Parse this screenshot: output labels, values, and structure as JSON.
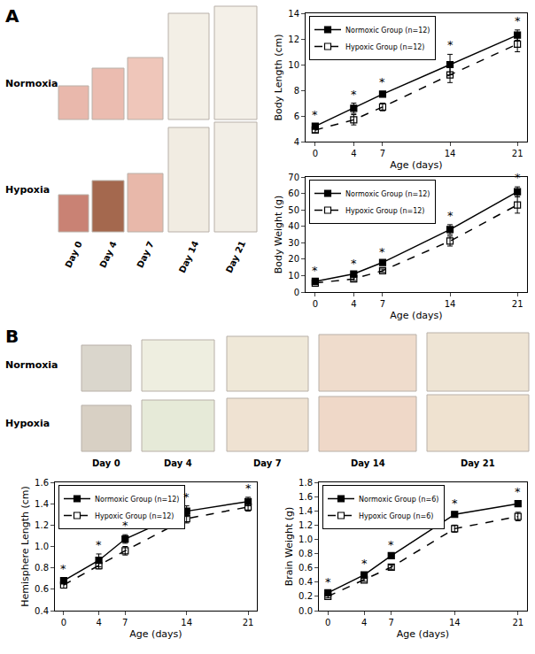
{
  "photo_panels": [
    {
      "label": "A",
      "rows": [
        "Normoxia",
        "Hypoxia"
      ],
      "columns": [
        "Day 0",
        "Day 4",
        "Day 7",
        "Day 14",
        "Day 21"
      ]
    },
    {
      "label": "B",
      "rows": [
        "Normoxia",
        "Hypoxia"
      ],
      "columns": [
        "Day 0",
        "Day 4",
        "Day 7",
        "Day 14",
        "Day 21"
      ]
    }
  ],
  "chart_data": [
    {
      "type": "line",
      "x_label": "Age (days)",
      "y_label": "Body Length (cm)",
      "x": [
        0,
        4,
        7,
        14,
        21
      ],
      "xlim": [
        -1,
        22
      ],
      "xticks": [
        0,
        4,
        7,
        14,
        21
      ],
      "ylim": [
        4,
        14
      ],
      "yticks": [
        4,
        6,
        8,
        10,
        12,
        14
      ],
      "grid": false,
      "legend": "upper left",
      "series": [
        {
          "name": "Normoxic Group (n=12)",
          "color": "#000000",
          "marker": "square",
          "line_style": "solid",
          "values": [
            5.2,
            6.6,
            7.7,
            10.0,
            12.3
          ],
          "error": [
            0.2,
            0.4,
            0.2,
            0.8,
            0.4
          ]
        },
        {
          "name": "Hypoxic Group (n=12)",
          "color": "#000000",
          "marker": "square-open",
          "line_style": "dash",
          "values": [
            4.9,
            5.7,
            6.7,
            9.2,
            11.6
          ],
          "error": [
            0.2,
            0.4,
            0.3,
            0.6,
            0.6
          ]
        }
      ],
      "annotations": [
        {
          "x": 0,
          "text": "*"
        },
        {
          "x": 4,
          "text": "*"
        },
        {
          "x": 7,
          "text": "*"
        },
        {
          "x": 14,
          "text": "*"
        },
        {
          "x": 21,
          "text": "*"
        }
      ]
    },
    {
      "type": "line",
      "x_label": "Age (days)",
      "y_label": "Body Weight (g)",
      "x": [
        0,
        4,
        7,
        14,
        21
      ],
      "xlim": [
        -1,
        22
      ],
      "xticks": [
        0,
        4,
        7,
        14,
        21
      ],
      "ylim": [
        0,
        70
      ],
      "yticks": [
        0,
        10,
        20,
        30,
        40,
        50,
        60,
        70
      ],
      "grid": false,
      "legend": "upper left",
      "series": [
        {
          "name": "Normoxic Group (n=12)",
          "color": "#000000",
          "marker": "square",
          "line_style": "solid",
          "values": [
            6.5,
            11,
            18,
            38,
            61
          ],
          "error": [
            1,
            1,
            1,
            3,
            3
          ]
        },
        {
          "name": "Hypoxic Group (n=12)",
          "color": "#000000",
          "marker": "square-open",
          "line_style": "dash",
          "values": [
            5.5,
            8,
            13,
            31,
            53
          ],
          "error": [
            1,
            1,
            1,
            3,
            5
          ]
        }
      ],
      "annotations": [
        {
          "x": 0,
          "text": "*"
        },
        {
          "x": 4,
          "text": "*"
        },
        {
          "x": 7,
          "text": "*"
        },
        {
          "x": 14,
          "text": "*"
        },
        {
          "x": 21,
          "text": "*"
        }
      ]
    },
    {
      "type": "line",
      "x_label": "Age (days)",
      "y_label": "Hemisphere Length (cm)",
      "x": [
        0,
        4,
        7,
        14,
        21
      ],
      "xlim": [
        -1,
        22
      ],
      "xticks": [
        0,
        4,
        7,
        14,
        21
      ],
      "ylim": [
        0.4,
        1.6
      ],
      "yticks": [
        0.4,
        0.6,
        0.8,
        {
          "value": 1.0,
          "label": "1.0"
        },
        1.2,
        1.4,
        1.6
      ],
      "grid": false,
      "legend": "upper left",
      "series": [
        {
          "name": "Normoxic Group (n=12)",
          "color": "#000000",
          "marker": "square",
          "line_style": "solid",
          "values": [
            0.68,
            0.87,
            1.07,
            1.33,
            1.42
          ],
          "error": [
            0.03,
            0.06,
            0.04,
            0.05,
            0.04
          ]
        },
        {
          "name": "Hypoxic Group (n=12)",
          "color": "#000000",
          "marker": "square-open",
          "line_style": "dash",
          "values": [
            0.64,
            0.82,
            0.96,
            1.26,
            1.37
          ],
          "error": [
            0.03,
            0.03,
            0.04,
            0.04,
            0.04
          ]
        }
      ],
      "annotations": [
        {
          "x": 0,
          "text": "*"
        },
        {
          "x": 4,
          "text": "*"
        },
        {
          "x": 7,
          "text": "*"
        },
        {
          "x": 14,
          "text": "*"
        },
        {
          "x": 21,
          "text": "*"
        }
      ]
    },
    {
      "type": "line",
      "x_label": "Age (days)",
      "y_label": "Brain Weight (g)",
      "x": [
        0,
        4,
        7,
        14,
        21
      ],
      "xlim": [
        -1,
        22
      ],
      "xticks": [
        0,
        4,
        7,
        14,
        21
      ],
      "ylim": [
        0,
        1.8
      ],
      "yticks": [
        {
          "value": 0,
          "label": "0.0"
        },
        0.2,
        0.4,
        0.6,
        0.8,
        {
          "value": 1.0,
          "label": "1.0"
        },
        1.2,
        1.4,
        1.6,
        1.8
      ],
      "grid": false,
      "legend": "upper left",
      "series": [
        {
          "name": "Normoxic Group (n=6)",
          "color": "#000000",
          "marker": "square",
          "line_style": "solid",
          "values": [
            0.25,
            0.5,
            0.77,
            1.35,
            1.5
          ],
          "error": [
            0.02,
            0.03,
            0.03,
            0.03,
            0.04
          ]
        },
        {
          "name": "Hypoxic Group (n=6)",
          "color": "#000000",
          "marker": "square-open",
          "line_style": "dash",
          "values": [
            0.2,
            0.43,
            0.61,
            1.15,
            1.32
          ],
          "error": [
            0.02,
            0.02,
            0.03,
            0.05,
            0.06
          ]
        }
      ],
      "annotations": [
        {
          "x": 0,
          "text": "*"
        },
        {
          "x": 4,
          "text": "*"
        },
        {
          "x": 7,
          "text": "*"
        },
        {
          "x": 14,
          "text": "*"
        },
        {
          "x": 21,
          "text": "*"
        }
      ]
    }
  ]
}
